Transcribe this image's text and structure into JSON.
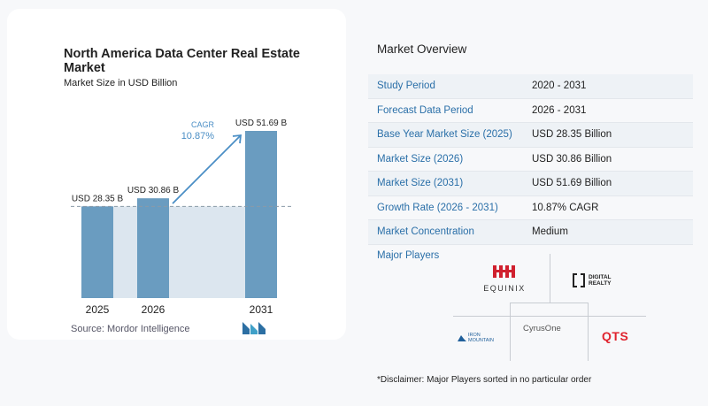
{
  "chart_data": {
    "type": "bar",
    "title": "North America Data Center Real Estate Market",
    "subtitle": "Market Size in USD Billion",
    "categories": [
      "2025",
      "2026",
      "2031"
    ],
    "values": [
      28.35,
      30.86,
      51.69
    ],
    "data_labels": [
      "USD 28.35 B",
      "USD 30.86 B",
      "USD 51.69 B"
    ],
    "cagr_label": "CAGR",
    "cagr_value": "10.87%",
    "colors": {
      "bar": "#6a9cc0",
      "shade": "#dce6ef",
      "arrow": "#4a8ec5",
      "dashed": "#8a9aa8"
    }
  },
  "source": "Source:  Mordor Intelligence",
  "overview": {
    "title": "Market Overview",
    "rows": [
      {
        "label": "Study Period",
        "value": "2020 - 2031"
      },
      {
        "label": "Forecast Data Period",
        "value": "2026 - 2031"
      },
      {
        "label": "Base Year Market Size (2025)",
        "value": "USD 28.35 Billion"
      },
      {
        "label": "Market Size (2026)",
        "value": "USD 30.86 Billion"
      },
      {
        "label": "Market Size (2031)",
        "value": "USD 51.69 Billion"
      },
      {
        "label": "Growth Rate (2026 - 2031)",
        "value": "10.87% CAGR"
      },
      {
        "label": "Market Concentration",
        "value": "Medium"
      }
    ]
  },
  "players": {
    "title": "Major Players",
    "logos": [
      "EQUINIX",
      "DIGITAL REALTY",
      "IRON MOUNTAIN",
      "CyrusOne",
      "QTS"
    ]
  },
  "disclaimer": "*Disclaimer: Major Players sorted in no particular order"
}
